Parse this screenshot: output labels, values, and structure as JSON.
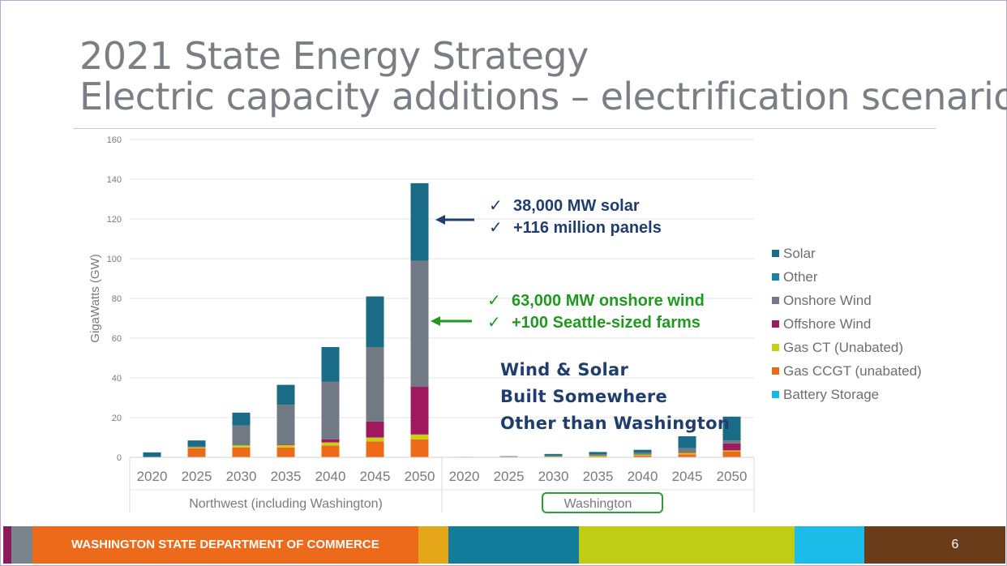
{
  "slide": {
    "title_line1": "2021 State Energy Strategy",
    "title_line2": "Electric capacity additions – electrification scenario",
    "page_number": "6",
    "footer_text": "WASHINGTON STATE DEPARTMENT OF COMMERCE"
  },
  "annotations": {
    "solar": {
      "check": "✓",
      "line1": "38,000 MW solar",
      "line2": "+116 million panels"
    },
    "wind": {
      "check": "✓",
      "line1": "63,000 MW onshore wind",
      "line2": "+100 Seattle-sized farms"
    },
    "elsewhere": {
      "line1": "Wind & Solar",
      "line2": "Built Somewhere",
      "line3": "Other than Washington"
    }
  },
  "colors": {
    "solar": "#1a6b85",
    "other": "#1a82a0",
    "onshore_wind": "#717a84",
    "offshore_wind": "#a0195f",
    "gas_ct": "#c9cf14",
    "gas_ccgt": "#ec6a1a",
    "battery": "#19b9e6",
    "title": "#7b7f85",
    "annotation_blue": "#1f3e6e",
    "annotation_green": "#1f9a1f",
    "footer_orange": "#ec6a1a"
  },
  "chart_data": {
    "type": "bar",
    "stacked": true,
    "ylabel": "GigaWatts (GW)",
    "ylim": [
      0,
      160
    ],
    "yticks": [
      0,
      20,
      40,
      60,
      80,
      100,
      120,
      140,
      160
    ],
    "groups": [
      "Northwest (including Washington)",
      "Washington"
    ],
    "categories": [
      "2020",
      "2025",
      "2030",
      "2035",
      "2040",
      "2045",
      "2050"
    ],
    "legend": [
      "Solar",
      "Other",
      "Onshore Wind",
      "Offshore Wind",
      "Gas CT (Unabated)",
      "Gas CCGT (unabated)",
      "Battery Storage"
    ],
    "series": [
      {
        "name": "Gas CCGT (unabated)",
        "color_key": "gas_ccgt",
        "Northwest (including Washington)": [
          0,
          4.5,
          5,
          5,
          6,
          8,
          9
        ],
        "Washington": [
          0,
          0,
          0,
          0.4,
          0.8,
          1.5,
          3
        ]
      },
      {
        "name": "Gas CT (Unabated)",
        "color_key": "gas_ct",
        "Northwest (including Washington)": [
          0,
          0.5,
          1,
          1.2,
          1.5,
          2,
          2.5
        ],
        "Washington": [
          0.3,
          0.4,
          0.4,
          0.4,
          0.5,
          0.8,
          0.5
        ]
      },
      {
        "name": "Offshore Wind",
        "color_key": "offshore_wind",
        "Northwest (including Washington)": [
          0,
          0,
          0,
          0.3,
          1.5,
          8,
          24
        ],
        "Washington": [
          0,
          0,
          0,
          0,
          0,
          0.3,
          3.5
        ]
      },
      {
        "name": "Onshore Wind",
        "color_key": "onshore_wind",
        "Northwest (including Washington)": [
          0,
          0.5,
          10,
          20,
          29,
          37.5,
          63.5
        ],
        "Washington": [
          0,
          0.2,
          0.5,
          0.7,
          1,
          2,
          1.5
        ]
      },
      {
        "name": "Other",
        "color_key": "other",
        "Northwest (including Washington)": [
          0,
          0,
          0,
          0,
          0,
          0,
          0
        ],
        "Washington": [
          0,
          0,
          0,
          0,
          0,
          0,
          0
        ]
      },
      {
        "name": "Solar",
        "color_key": "solar",
        "Northwest (including Washington)": [
          2.5,
          3,
          6.5,
          10,
          17.5,
          25.5,
          39
        ],
        "Washington": [
          0,
          0,
          0.8,
          1.2,
          1.5,
          6,
          12
        ]
      },
      {
        "name": "Battery Storage",
        "color_key": "battery",
        "Northwest (including Washington)": [
          0,
          0,
          0,
          0,
          0,
          0,
          0
        ],
        "Washington": [
          0,
          0,
          0,
          0,
          0,
          0,
          0
        ]
      }
    ]
  }
}
